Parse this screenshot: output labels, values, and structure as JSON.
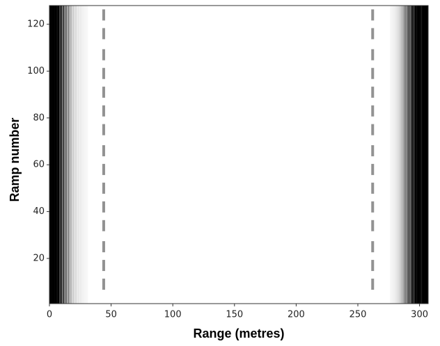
{
  "chart_data": {
    "type": "heatmap",
    "xlabel": "Range (metres)",
    "ylabel": "Ramp number",
    "xlim": [
      0,
      307
    ],
    "ylim": [
      0.7,
      128
    ],
    "xticks": [
      0,
      50,
      100,
      150,
      200,
      250,
      300
    ],
    "yticks": [
      20,
      40,
      60,
      80,
      100,
      120
    ],
    "colormap": "gray_r",
    "columns": {
      "x": [
        0,
        1,
        2,
        3,
        4,
        5,
        6,
        7,
        8,
        9,
        10,
        11,
        12,
        13,
        14,
        15,
        16,
        17,
        18,
        19,
        20,
        21,
        22,
        23,
        24,
        25,
        26,
        27,
        28,
        29,
        30,
        276,
        277,
        278,
        279,
        280,
        281,
        282,
        283,
        284,
        285,
        286,
        287,
        288,
        289,
        290,
        291,
        292,
        293,
        294,
        295,
        296,
        297,
        298,
        299,
        300,
        301,
        302,
        303,
        304,
        305,
        306
      ],
      "values": [
        1,
        1,
        1,
        1,
        1,
        1,
        0.95,
        1,
        0.7,
        0.9,
        0.5,
        0.8,
        0.4,
        0.6,
        0.3,
        0.5,
        0.25,
        0.3,
        0.15,
        0.2,
        0.1,
        0.15,
        0.08,
        0.1,
        0.06,
        0.08,
        0.05,
        0.05,
        0.04,
        0.03,
        0.03,
        0.03,
        0.04,
        0.05,
        0.06,
        0.08,
        0.1,
        0.12,
        0.15,
        0.2,
        0.25,
        0.3,
        0.4,
        0.5,
        0.45,
        0.6,
        0.7,
        0.55,
        0.8,
        0.9,
        0.75,
        1,
        0.95,
        1,
        1,
        1,
        0.9,
        1,
        1,
        1,
        1,
        1
      ]
    },
    "stripes": [
      {
        "x": 44,
        "dashes": [
          9,
          17,
          25,
          34,
          42,
          50,
          58,
          66,
          75,
          83,
          91,
          99,
          107,
          116,
          124
        ]
      },
      {
        "x": 262,
        "dashes": [
          9,
          17,
          25,
          34,
          42,
          50,
          58,
          66,
          75,
          83,
          91,
          99,
          107,
          116,
          124
        ]
      }
    ]
  }
}
